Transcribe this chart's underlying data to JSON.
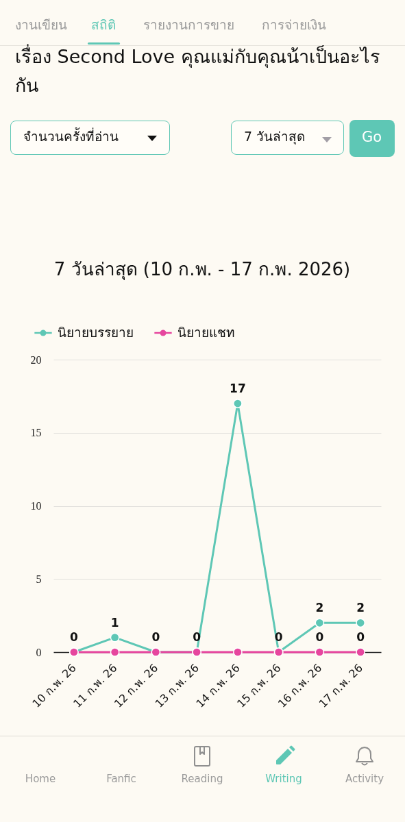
{
  "chart_data": [
    {
      "type": "other",
      "annotations": [
        "งานเขียน",
        "สถิติ",
        "รายงานการขาย",
        "การจ่ายเงิน"
      ]
    },
    {
      "type": "other",
      "title": "เรื่อง Second Love คุณแม่กับคุณน้าเป็นอะไรกัน",
      "annotations": [
        "จำนวนครั้งที่อ่าน",
        "7 วันล่าสุด",
        "Go"
      ]
    },
    {
      "type": "line",
      "title": "7 วันล่าสุด (10 ก.พ. - 17 ก.พ. 2026)",
      "categories": [
        "10 ก.พ. 26",
        "11 ก.พ. 26",
        "12 ก.พ. 26",
        "13 ก.พ. 26",
        "14 ก.พ. 26",
        "15 ก.พ. 26",
        "16 ก.พ. 26",
        "17 ก.พ. 26"
      ],
      "series": [
        {
          "name": "นิยายบรรยาย",
          "color": "#5ec7b5",
          "values": [
            0,
            1,
            0,
            0,
            17,
            0,
            2,
            2
          ],
          "value_labels": [
            "0",
            "1",
            "0",
            "0",
            "17",
            "0",
            "2",
            "2"
          ]
        },
        {
          "name": "นิยายแชท",
          "color": "#e6469e",
          "values": [
            0,
            0,
            0,
            0,
            0,
            0,
            0,
            0
          ],
          "value_labels": [
            null,
            null,
            null,
            null,
            null,
            null,
            "0",
            "0"
          ]
        }
      ],
      "ylim": [
        0,
        20
      ],
      "yticks": [
        0,
        5,
        10,
        15,
        20
      ],
      "grid": "y",
      "legend": "top left",
      "marker": "circle",
      "line_style": "solid"
    },
    {
      "type": "other",
      "annotations": [
        "Home",
        "Fanfic",
        "Reading",
        "Writing",
        "Activity"
      ]
    }
  ]
}
